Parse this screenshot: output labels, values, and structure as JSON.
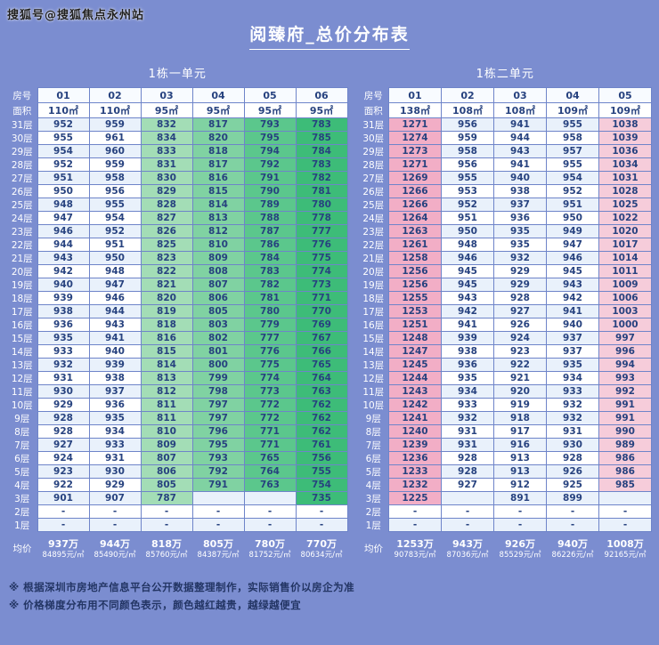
{
  "watermark": "搜狐号@搜狐焦点永州站",
  "title": "阅臻府_总价分布表",
  "notes": [
    "※ 根据深圳市房地产信息平台公开数据整理制作，实际销售价以房企为准",
    "※ 价格梯度分布用不同颜色表示，颜色越红越贵，越绿越便宜"
  ],
  "colors": {
    "page_background": "#7b8dd0",
    "table_border": "#6e84c9",
    "value_text": "#27427f",
    "label_text": "#ffffff",
    "header_bg": "#f8fbff",
    "area_bg": "#ffffff",
    "stripe_blue": "#e9f1fb",
    "stripe_white": "#ffffff",
    "note_text": "#233564",
    "heat_green_light": "#a3ddb6",
    "heat_green_dark": "#3dbc78",
    "heat_pink_dark": "#f2aec6",
    "heat_pink_light": "#f6ccda"
  },
  "chart_data": [
    {
      "type": "heatmap",
      "title": "1栋一单元",
      "row_labels": {
        "room": "房号",
        "area": "面积",
        "avg": "均价"
      },
      "columns": [
        "01",
        "02",
        "03",
        "04",
        "05",
        "06"
      ],
      "areas": [
        "110㎡",
        "110㎡",
        "95㎡",
        "95㎡",
        "95㎡",
        "95㎡"
      ],
      "floors": [
        "31层",
        "30层",
        "29层",
        "28层",
        "27层",
        "26层",
        "25层",
        "24层",
        "23层",
        "22层",
        "21层",
        "20层",
        "19层",
        "18层",
        "17层",
        "16层",
        "15层",
        "14层",
        "13层",
        "12层",
        "11层",
        "10层",
        "9层",
        "8层",
        "7层",
        "6层",
        "5层",
        "4层",
        "3层",
        "2层",
        "1层"
      ],
      "values": [
        [
          952,
          959,
          832,
          817,
          793,
          783
        ],
        [
          955,
          961,
          834,
          820,
          795,
          785
        ],
        [
          954,
          960,
          833,
          818,
          794,
          784
        ],
        [
          952,
          959,
          831,
          817,
          792,
          783
        ],
        [
          951,
          958,
          830,
          816,
          791,
          782
        ],
        [
          950,
          956,
          829,
          815,
          790,
          781
        ],
        [
          948,
          955,
          828,
          814,
          789,
          780
        ],
        [
          947,
          954,
          827,
          813,
          788,
          778
        ],
        [
          946,
          952,
          826,
          812,
          787,
          777
        ],
        [
          944,
          951,
          825,
          810,
          786,
          776
        ],
        [
          943,
          950,
          823,
          809,
          784,
          775
        ],
        [
          942,
          948,
          822,
          808,
          783,
          774
        ],
        [
          940,
          947,
          821,
          807,
          782,
          773
        ],
        [
          939,
          946,
          820,
          806,
          781,
          771
        ],
        [
          938,
          944,
          819,
          805,
          780,
          770
        ],
        [
          936,
          943,
          818,
          803,
          779,
          769
        ],
        [
          935,
          941,
          816,
          802,
          777,
          767
        ],
        [
          933,
          940,
          815,
          801,
          776,
          766
        ],
        [
          932,
          939,
          814,
          800,
          775,
          765
        ],
        [
          931,
          938,
          813,
          799,
          774,
          764
        ],
        [
          930,
          937,
          812,
          798,
          773,
          763
        ],
        [
          929,
          936,
          811,
          797,
          772,
          762
        ],
        [
          928,
          935,
          811,
          797,
          772,
          762
        ],
        [
          928,
          934,
          810,
          796,
          771,
          762
        ],
        [
          927,
          933,
          809,
          795,
          771,
          761
        ],
        [
          924,
          931,
          807,
          793,
          765,
          756
        ],
        [
          923,
          930,
          806,
          792,
          764,
          755
        ],
        [
          922,
          929,
          805,
          791,
          763,
          754
        ],
        [
          901,
          907,
          787,
          "",
          "",
          735
        ],
        [
          "-",
          "-",
          "-",
          "-",
          "-",
          "-"
        ],
        [
          "-",
          "-",
          "-",
          "-",
          "-",
          "-"
        ]
      ],
      "avg_price": [
        "937万",
        "944万",
        "818万",
        "805万",
        "780万",
        "770万"
      ],
      "avg_unit_price": [
        "84895元/㎡",
        "85490元/㎡",
        "85760元/㎡",
        "84387元/㎡",
        "81752元/㎡",
        "80634元/㎡"
      ],
      "col_colors": [
        "alt",
        "alt",
        "#a3ddb6",
        "#80d2a2",
        "#5bc78c",
        "#3dbc78"
      ]
    },
    {
      "type": "heatmap",
      "title": "1栋二单元",
      "row_labels": {
        "room": "房号",
        "area": "面积",
        "avg": "均价"
      },
      "columns": [
        "01",
        "02",
        "03",
        "04",
        "05"
      ],
      "areas": [
        "138㎡",
        "108㎡",
        "108㎡",
        "109㎡",
        "109㎡"
      ],
      "floors": [
        "31层",
        "30层",
        "29层",
        "28层",
        "27层",
        "26层",
        "25层",
        "24层",
        "23层",
        "22层",
        "21层",
        "20层",
        "19层",
        "18层",
        "17层",
        "16层",
        "15层",
        "14层",
        "13层",
        "12层",
        "11层",
        "10层",
        "9层",
        "8层",
        "7层",
        "6层",
        "5层",
        "4层",
        "3层",
        "2层",
        "1层"
      ],
      "values": [
        [
          1271,
          956,
          941,
          955,
          1038
        ],
        [
          1274,
          959,
          944,
          958,
          1039
        ],
        [
          1273,
          958,
          943,
          957,
          1036
        ],
        [
          1271,
          956,
          941,
          955,
          1034
        ],
        [
          1269,
          955,
          940,
          954,
          1031
        ],
        [
          1266,
          953,
          938,
          952,
          1028
        ],
        [
          1266,
          952,
          937,
          951,
          1025
        ],
        [
          1264,
          951,
          936,
          950,
          1022
        ],
        [
          1263,
          950,
          935,
          949,
          1020
        ],
        [
          1261,
          948,
          935,
          947,
          1017
        ],
        [
          1258,
          946,
          932,
          946,
          1014
        ],
        [
          1256,
          945,
          929,
          945,
          1011
        ],
        [
          1256,
          945,
          929,
          943,
          1009
        ],
        [
          1255,
          943,
          928,
          942,
          1006
        ],
        [
          1253,
          942,
          927,
          941,
          1003
        ],
        [
          1251,
          941,
          926,
          940,
          1000
        ],
        [
          1248,
          939,
          924,
          937,
          997
        ],
        [
          1247,
          938,
          923,
          937,
          996
        ],
        [
          1245,
          936,
          922,
          935,
          994
        ],
        [
          1244,
          935,
          921,
          934,
          993
        ],
        [
          1243,
          934,
          920,
          933,
          992
        ],
        [
          1242,
          933,
          919,
          932,
          991
        ],
        [
          1241,
          932,
          918,
          932,
          991
        ],
        [
          1240,
          931,
          917,
          931,
          990
        ],
        [
          1239,
          931,
          916,
          930,
          989
        ],
        [
          1236,
          928,
          913,
          928,
          986
        ],
        [
          1233,
          928,
          913,
          926,
          986
        ],
        [
          1232,
          927,
          912,
          925,
          985
        ],
        [
          1225,
          "",
          891,
          899,
          ""
        ],
        [
          "-",
          "-",
          "-",
          "-",
          "-"
        ],
        [
          "-",
          "-",
          "-",
          "-",
          "-"
        ]
      ],
      "avg_price": [
        "1253万",
        "943万",
        "926万",
        "940万",
        "1008万"
      ],
      "avg_unit_price": [
        "90783元/㎡",
        "87036元/㎡",
        "85529元/㎡",
        "86226元/㎡",
        "92165元/㎡"
      ],
      "col_colors": [
        "#f2aec6",
        "alt",
        "alt",
        "alt",
        "#f6ccda"
      ]
    }
  ]
}
